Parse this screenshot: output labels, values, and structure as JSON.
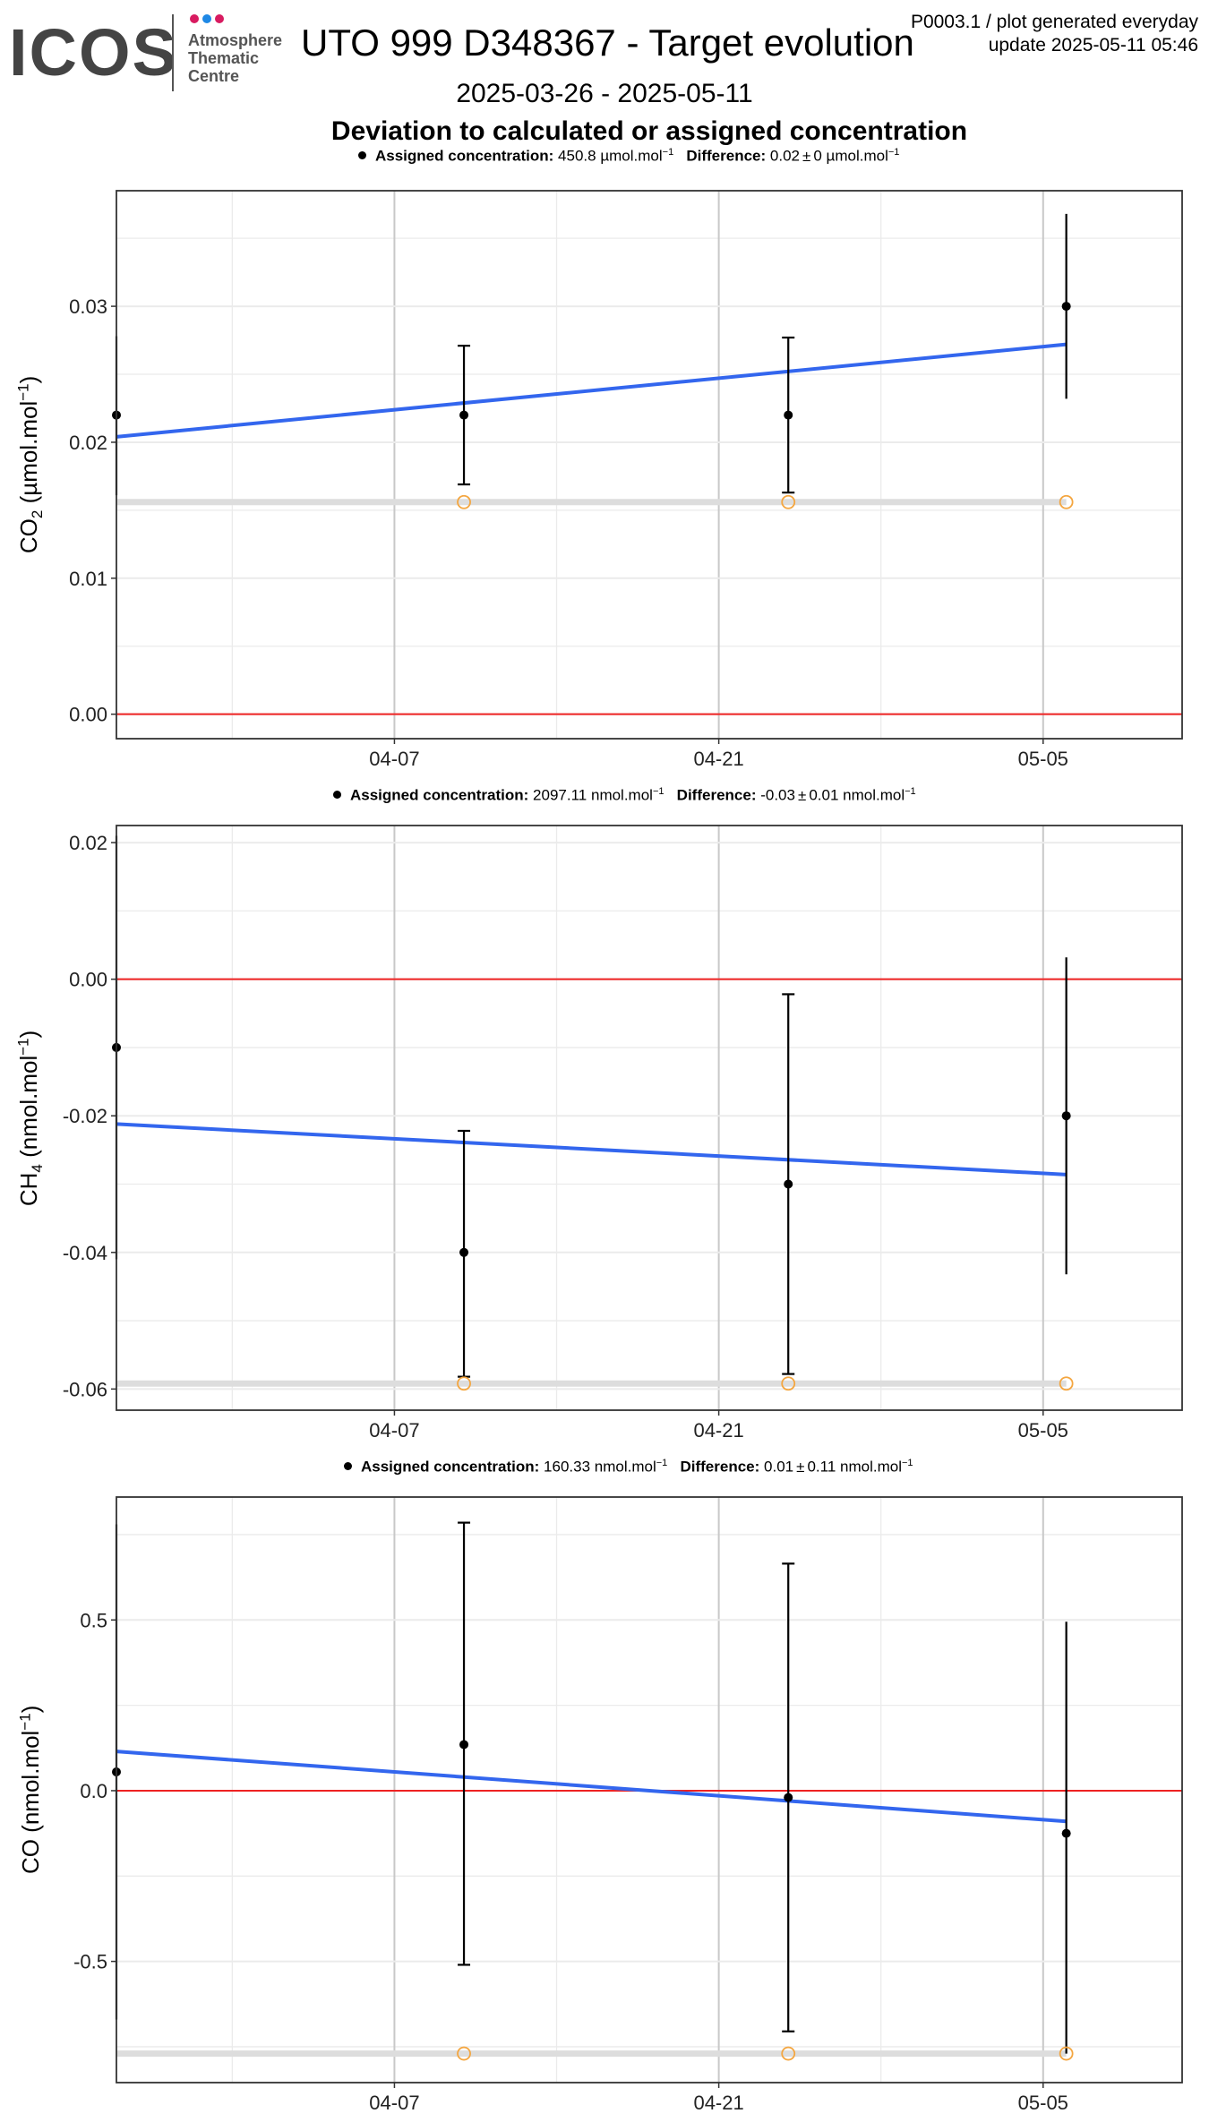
{
  "header": {
    "logo_text": "ICOS",
    "logo_lines": [
      "Atmosphere",
      "Thematic",
      "Centre"
    ],
    "logo_dot_colors": [
      "#d81b60",
      "#1e88e5",
      "#d81b60"
    ],
    "title": "UTO 999 D348367 - Target evolution",
    "meta_line1": "P0003.1 / plot generated everyday",
    "meta_line2": "update  2025-05-11 05:46",
    "date_range": "2025-03-26 - 2025-05-11",
    "subtitle": "Deviation to calculated or assigned concentration"
  },
  "colors": {
    "trend": "#3366ee",
    "zero_line": "#ee2222",
    "ref_point": "#f4a640",
    "ref_band": "#dddddd",
    "points": "#000000",
    "grid_major": "#c8c8c8",
    "grid_minor": "#ebebeb",
    "frame": "#333333"
  },
  "x_axis": {
    "start": "2025-03-26",
    "end": "2025-05-11",
    "tick_dates": [
      "2025-04-07",
      "2025-04-21",
      "2025-05-05"
    ],
    "tick_labels": [
      "04-07",
      "04-21",
      "05-05"
    ],
    "minor_dates": [
      "2025-03-31",
      "2025-04-14",
      "2025-04-28"
    ]
  },
  "chart_data": [
    {
      "type": "scatter",
      "gas": "CO2",
      "legend": {
        "assigned_label": "Assigned concentration:",
        "assigned_value": "450.8",
        "assigned_unit": "µmol.mol",
        "difference_label": "Difference:",
        "difference_value": "0.02",
        "difference_sd": "0",
        "difference_unit": "µmol.mol",
        "unit_exp": "−1"
      },
      "ylabel": {
        "main": "CO",
        "sub": "2",
        "unit": " (µmol.mol",
        "exp": "−1",
        "close": ")"
      },
      "ylim": [
        -0.0018,
        0.0385
      ],
      "yticks": [
        0.0,
        0.01,
        0.02,
        0.03
      ],
      "ytick_labels": [
        "0.00",
        "0.01",
        "0.02",
        "0.03"
      ],
      "points": [
        {
          "date": "2025-03-26",
          "y": 0.022,
          "ymin": 0.0161,
          "ymax": 0.0278
        },
        {
          "date": "2025-04-10",
          "y": 0.022,
          "ymin": 0.0169,
          "ymax": 0.0271
        },
        {
          "date": "2025-04-24",
          "y": 0.022,
          "ymin": 0.0163,
          "ymax": 0.0277
        },
        {
          "date": "2025-05-06",
          "y": 0.03,
          "ymin": 0.0232,
          "ymax": 0.0368
        }
      ],
      "reference_points": [
        {
          "date": "2025-04-10",
          "y": 0.0156
        },
        {
          "date": "2025-04-24",
          "y": 0.0156
        },
        {
          "date": "2025-05-06",
          "y": 0.0156
        }
      ],
      "reference_band_y": 0.0156,
      "trend": {
        "y_start": 0.0204,
        "y_end": 0.0272
      },
      "zero_line_y": 0
    },
    {
      "type": "scatter",
      "gas": "CH4",
      "legend": {
        "assigned_label": "Assigned concentration:",
        "assigned_value": "2097.11",
        "assigned_unit": "nmol.mol",
        "difference_label": "Difference:",
        "difference_value": "-0.03",
        "difference_sd": "0.01",
        "difference_unit": "nmol.mol",
        "unit_exp": "−1"
      },
      "ylabel": {
        "main": "CH",
        "sub": "4",
        "unit": " (nmol.mol",
        "exp": "−1",
        "close": ")"
      },
      "ylim": [
        -0.0631,
        0.0225
      ],
      "yticks": [
        -0.06,
        -0.04,
        -0.02,
        0.0,
        0.02
      ],
      "ytick_labels": [
        "-0.06",
        "-0.04",
        "-0.02",
        "0.00",
        "0.02"
      ],
      "points": [
        {
          "date": "2025-03-26",
          "y": -0.01,
          "ymin": -0.041,
          "ymax": 0.021
        },
        {
          "date": "2025-04-10",
          "y": -0.04,
          "ymin": -0.0582,
          "ymax": -0.0222
        },
        {
          "date": "2025-04-24",
          "y": -0.03,
          "ymin": -0.0578,
          "ymax": -0.0022
        },
        {
          "date": "2025-05-06",
          "y": -0.02,
          "ymin": -0.0432,
          "ymax": 0.0032
        }
      ],
      "reference_points": [
        {
          "date": "2025-04-10",
          "y": -0.0592
        },
        {
          "date": "2025-04-24",
          "y": -0.0592
        },
        {
          "date": "2025-05-06",
          "y": -0.0592
        }
      ],
      "reference_band_y": -0.0592,
      "trend": {
        "y_start": -0.0212,
        "y_end": -0.0286
      },
      "zero_line_y": 0
    },
    {
      "type": "scatter",
      "gas": "CO",
      "legend": {
        "assigned_label": "Assigned concentration:",
        "assigned_value": "160.33",
        "assigned_unit": "nmol.mol",
        "difference_label": "Difference:",
        "difference_value": "0.01",
        "difference_sd": "0.11",
        "difference_unit": "nmol.mol",
        "unit_exp": "−1"
      },
      "ylabel": {
        "main": "CO",
        "sub": "",
        "unit": " (nmol.mol",
        "exp": "−1",
        "close": ")"
      },
      "ylim": [
        -0.855,
        0.86
      ],
      "yticks": [
        -0.5,
        0.0,
        0.5
      ],
      "ytick_labels": [
        "-0.5",
        "0.0",
        "0.5"
      ],
      "points": [
        {
          "date": "2025-03-26",
          "y": 0.055,
          "ymin": -0.67,
          "ymax": 0.78
        },
        {
          "date": "2025-04-10",
          "y": 0.135,
          "ymin": -0.51,
          "ymax": 0.785
        },
        {
          "date": "2025-04-24",
          "y": -0.02,
          "ymin": -0.705,
          "ymax": 0.665
        },
        {
          "date": "2025-05-06",
          "y": -0.125,
          "ymin": -0.77,
          "ymax": 0.495
        }
      ],
      "reference_points": [
        {
          "date": "2025-04-10",
          "y": -0.77
        },
        {
          "date": "2025-04-24",
          "y": -0.77
        },
        {
          "date": "2025-05-06",
          "y": -0.77
        }
      ],
      "reference_band_y": -0.77,
      "trend": {
        "y_start": 0.115,
        "y_end": -0.09
      },
      "zero_line_y": 0
    }
  ]
}
